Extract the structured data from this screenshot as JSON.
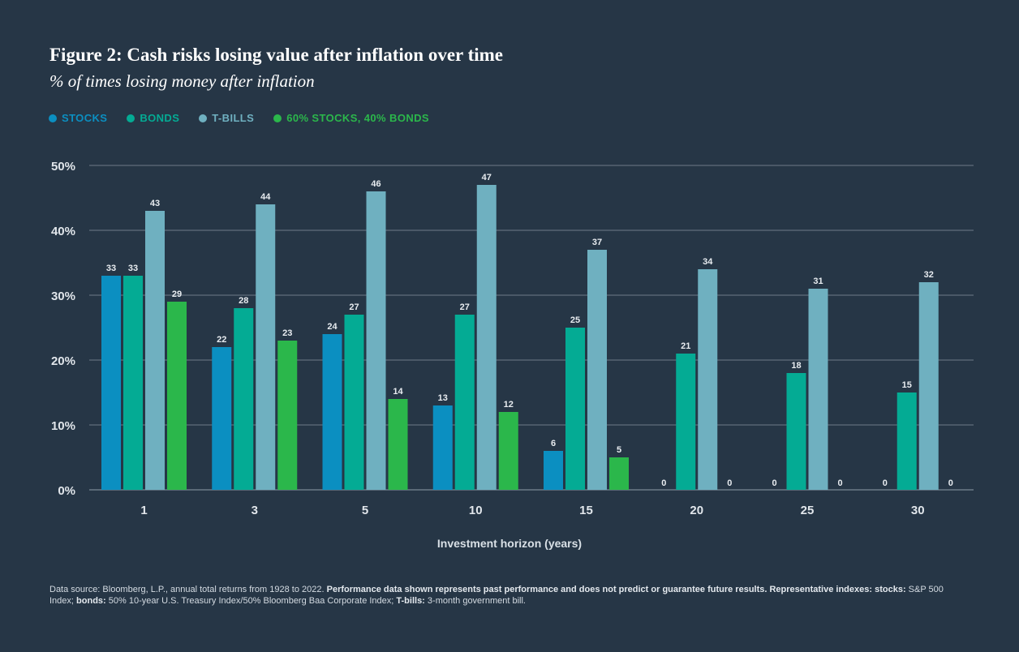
{
  "chart_data": {
    "type": "bar",
    "title": "Figure 2: Cash risks losing value after inflation over time",
    "subtitle": "% of times losing money after inflation",
    "xlabel": "Investment horizon (years)",
    "ylabel": "",
    "ylim": [
      0,
      50
    ],
    "yticks": [
      0,
      10,
      20,
      30,
      40,
      50
    ],
    "ytick_labels": [
      "0%",
      "10%",
      "20%",
      "30%",
      "40%",
      "50%"
    ],
    "grid": true,
    "legend_position": "top-left",
    "categories": [
      "1",
      "3",
      "5",
      "10",
      "15",
      "20",
      "25",
      "30"
    ],
    "series": [
      {
        "name": "STOCKS",
        "color": "#0b8fc1",
        "values": [
          33,
          22,
          24,
          13,
          6,
          0,
          0,
          0
        ]
      },
      {
        "name": "BONDS",
        "color": "#04ab94",
        "values": [
          33,
          28,
          27,
          27,
          25,
          21,
          18,
          15
        ]
      },
      {
        "name": "T-BILLS",
        "color": "#6fb0c0",
        "values": [
          43,
          44,
          46,
          47,
          37,
          34,
          31,
          32
        ]
      },
      {
        "name": "60% STOCKS, 40% BONDS",
        "color": "#2bb74b",
        "values": [
          29,
          23,
          14,
          12,
          5,
          0,
          0,
          0
        ]
      }
    ]
  },
  "footer": {
    "part1": "Data source: Bloomberg, L.P., annual total returns from 1928 to 2022. ",
    "part2": "Performance data shown represents past performance and does not predict or guarantee future results. Representative indexes: stocks:",
    "part3": " S&P 500 Index; ",
    "part4": "bonds:",
    "part5": " 50% 10-year U.S. Treasury Index/50% Bloomberg Baa Corporate Index; ",
    "part6": "T-bills:",
    "part7": " 3-month government bill."
  }
}
